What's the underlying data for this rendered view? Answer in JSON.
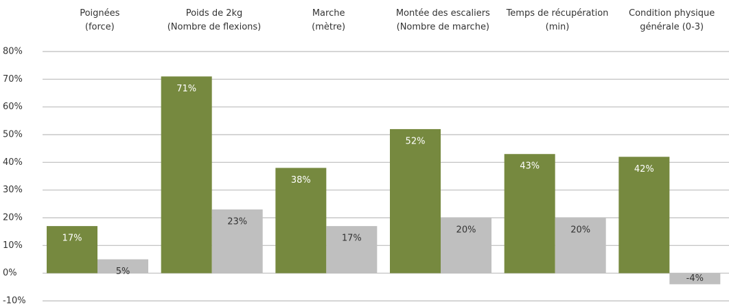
{
  "chart_data": {
    "type": "bar",
    "categories": [
      "Poignées\n(force)",
      "Poids de 2kg\n(Nombre de flexions)",
      "Marche\n(mètre)",
      "Montée des escaliers\n(Nombre de marche)",
      "Temps de récupération\n(min)",
      "Condition physique\ngénérale (0-3)"
    ],
    "series": [
      {
        "color": "#76893f",
        "values": [
          17,
          71,
          38,
          52,
          43,
          42
        ],
        "value_labels": [
          "17%",
          "71%",
          "38%",
          "52%",
          "43%",
          "42%"
        ]
      },
      {
        "color": "#bfbfbf",
        "values": [
          5,
          23,
          17,
          20,
          20,
          -4
        ],
        "value_labels": [
          "5%",
          "23%",
          "17%",
          "20%",
          "20%",
          "-4%"
        ]
      }
    ],
    "ylim": [
      -10,
      80
    ],
    "yticks": [
      {
        "value": -10,
        "label": "-10%"
      },
      {
        "value": 0,
        "label": "0%"
      },
      {
        "value": 10,
        "label": "10%"
      },
      {
        "value": 20,
        "label": "20%"
      },
      {
        "value": 30,
        "label": "30%"
      },
      {
        "value": 40,
        "label": "40%"
      },
      {
        "value": 50,
        "label": "50%"
      },
      {
        "value": 60,
        "label": "60%"
      },
      {
        "value": 70,
        "label": "70%"
      },
      {
        "value": 80,
        "label": "80%"
      }
    ],
    "grid": true
  }
}
